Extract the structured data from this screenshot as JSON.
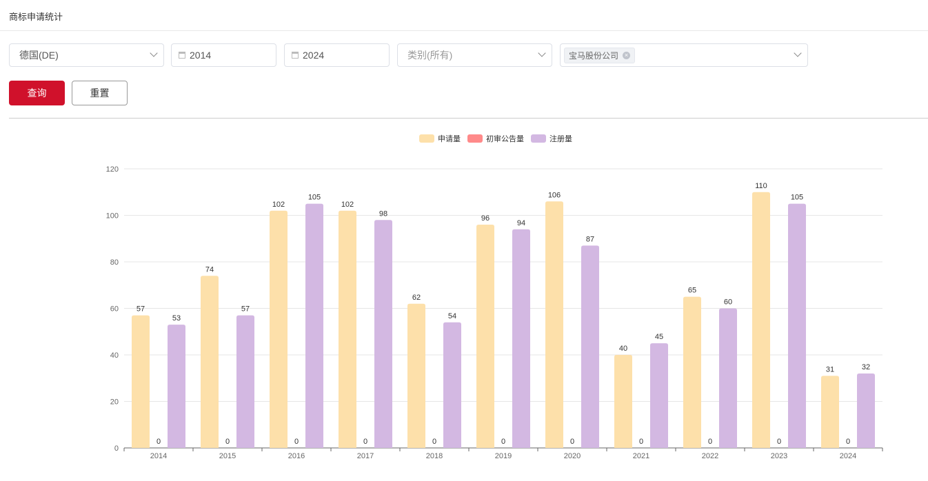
{
  "page_title": "商标申请统计",
  "filters": {
    "country": "德国(DE)",
    "start_year": "2014",
    "end_year": "2024",
    "category_placeholder": "类别(所有)",
    "company_tag": "宝马股份公司"
  },
  "buttons": {
    "query": "查询",
    "reset": "重置"
  },
  "chart_data": {
    "type": "bar",
    "categories": [
      "2014",
      "2015",
      "2016",
      "2017",
      "2018",
      "2019",
      "2020",
      "2021",
      "2022",
      "2023",
      "2024"
    ],
    "series": [
      {
        "name": "申请量",
        "color": "#fde0aa",
        "values": [
          57,
          74,
          102,
          102,
          62,
          96,
          106,
          40,
          65,
          110,
          31
        ]
      },
      {
        "name": "初审公告量",
        "color": "#ff8a8a",
        "values": [
          0,
          0,
          0,
          0,
          0,
          0,
          0,
          0,
          0,
          0,
          0
        ]
      },
      {
        "name": "注册量",
        "color": "#d3b8e2",
        "values": [
          53,
          57,
          105,
          98,
          54,
          94,
          87,
          45,
          60,
          105,
          32
        ]
      }
    ],
    "yticks": [
      0,
      20,
      40,
      60,
      80,
      100,
      120
    ],
    "ylim": [
      0,
      120
    ],
    "grid": true,
    "legend": "top-center",
    "data_labels": true
  }
}
